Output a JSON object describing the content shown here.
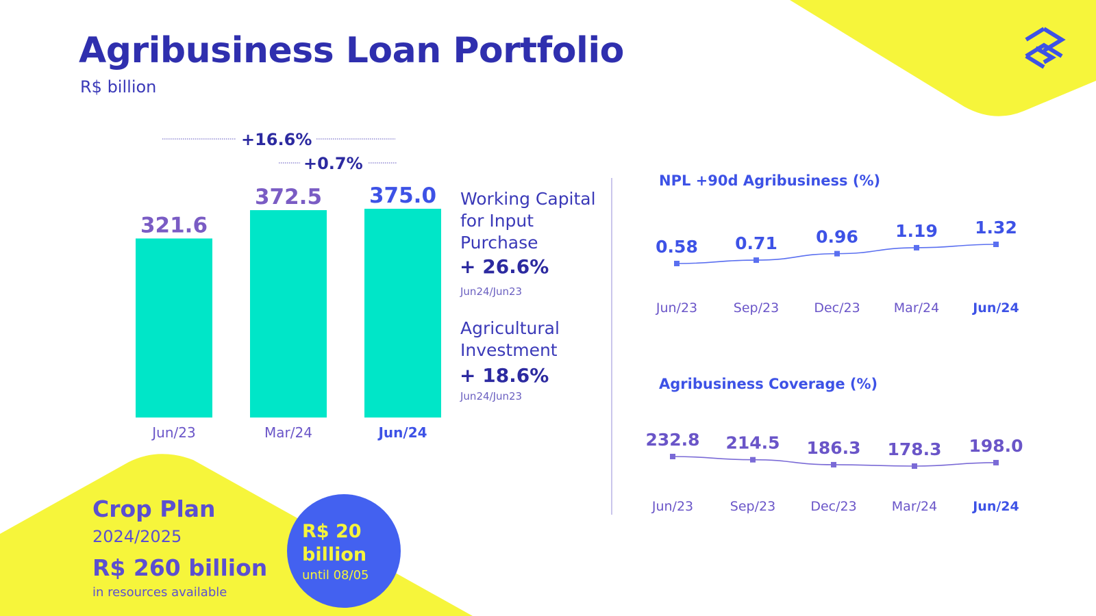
{
  "header": {
    "title": "Agribusiness Loan Portfolio",
    "subtitle": "R$ billion",
    "logo_icon": "bb-logo-icon"
  },
  "growth": {
    "yoy": "+16.6%",
    "qoq": "+0.7%"
  },
  "side_notes": {
    "working_capital_label": "Working Capital for Input Purchase",
    "working_capital_pct": "+ 26.6%",
    "working_capital_period": "Jun24/Jun23",
    "investment_label": "Agricultural Investment",
    "investment_pct": "+ 18.6%",
    "investment_period": "Jun24/Jun23"
  },
  "npl": {
    "title": "NPL +90d Agribusiness (%)"
  },
  "coverage": {
    "title": "Agribusiness Coverage (%)"
  },
  "crop_plan": {
    "title": "Crop Plan",
    "year": "2024/2025",
    "amount": "R$ 260 billion",
    "note": "in resources available",
    "circle_amount": "R$ 20 billion",
    "circle_note": "until 08/05"
  },
  "colors": {
    "bar": "#00e6c8",
    "yellow": "#f6f53b",
    "accent_blue": "#4361f0",
    "dark_purple": "#2f2fae",
    "label_purple": "#6a55c8"
  },
  "chart_data": [
    {
      "type": "bar",
      "categories": [
        "Jun/23",
        "Mar/24",
        "Jun/24"
      ],
      "values": [
        321.6,
        372.5,
        375.0
      ],
      "value_labels": [
        "321.6",
        "372.5",
        "375.0"
      ],
      "highlight_category": "Jun/24",
      "ylim": [
        0,
        375
      ]
    },
    {
      "type": "line",
      "title": "NPL +90d Agribusiness (%)",
      "categories": [
        "Jun/23",
        "Sep/23",
        "Dec/23",
        "Mar/24",
        "Jun/24"
      ],
      "values": [
        0.58,
        0.71,
        0.96,
        1.19,
        1.32
      ],
      "value_labels": [
        "0.58",
        "0.71",
        "0.96",
        "1.19",
        "1.32"
      ],
      "highlight_category": "Jun/24"
    },
    {
      "type": "line",
      "title": "Agribusiness Coverage (%)",
      "categories": [
        "Jun/23",
        "Sep/23",
        "Dec/23",
        "Mar/24",
        "Jun/24"
      ],
      "values": [
        232.8,
        214.5,
        186.3,
        178.3,
        198.0
      ],
      "value_labels": [
        "232.8",
        "214.5",
        "186.3",
        "178.3",
        "198.0"
      ],
      "highlight_category": "Jun/24"
    }
  ]
}
